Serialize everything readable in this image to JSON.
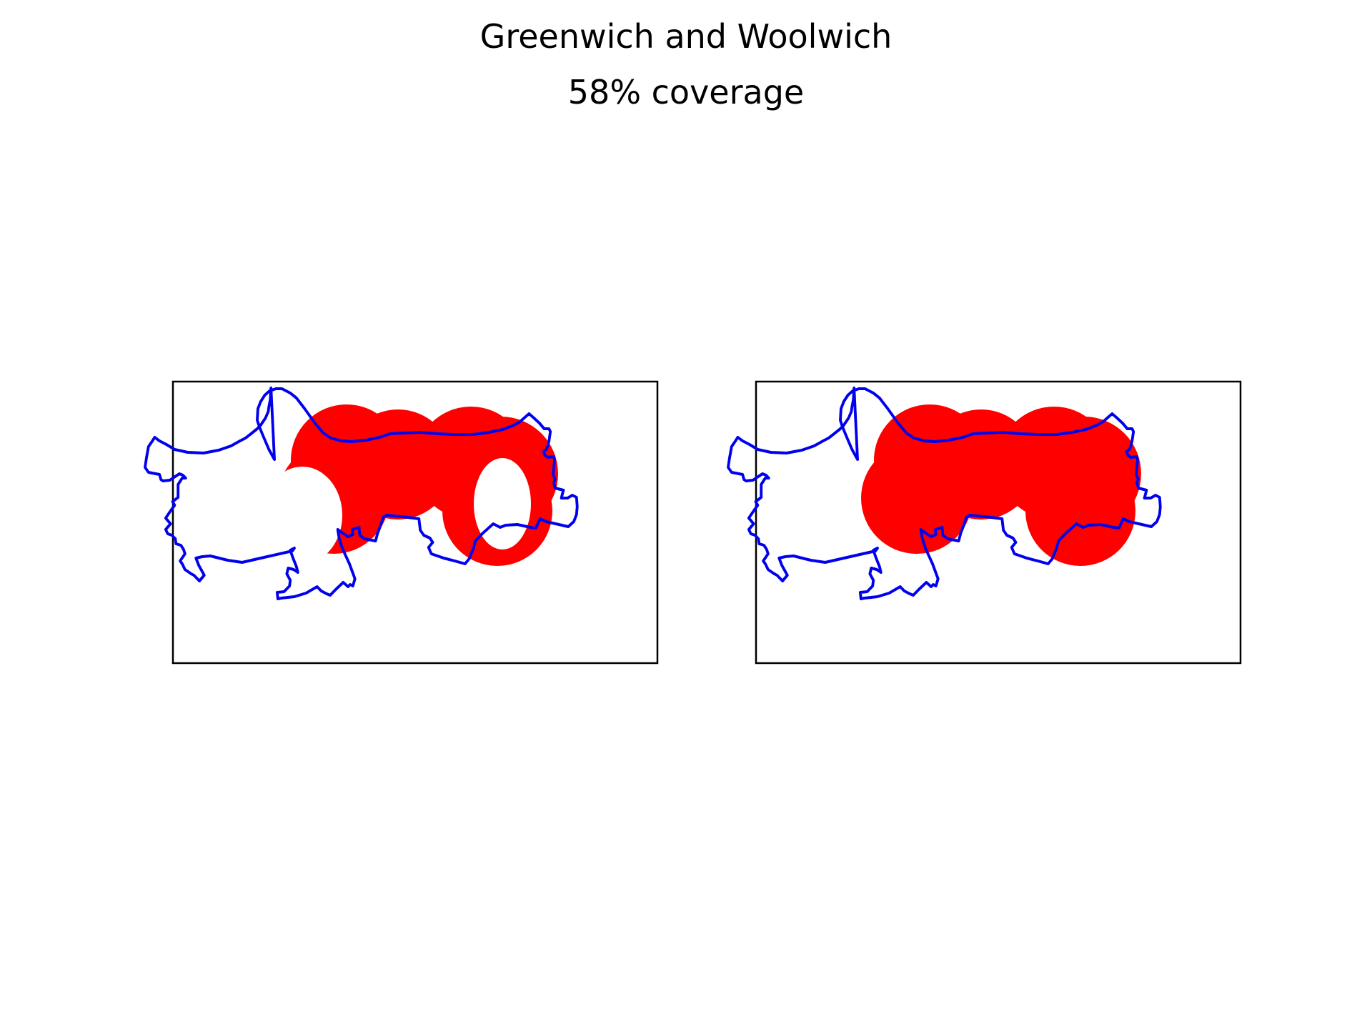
{
  "figure": {
    "title": "Greenwich and Woolwich",
    "subtitle": "58% coverage",
    "colors": {
      "boundary": "#0000ee",
      "coverage": "#ff0000",
      "frame": "#000000",
      "background": "#ffffff"
    }
  },
  "panels": [
    {
      "name": "left-panel",
      "coverage_style": "rings"
    },
    {
      "name": "right-panel",
      "coverage_style": "filled-disks"
    }
  ]
}
